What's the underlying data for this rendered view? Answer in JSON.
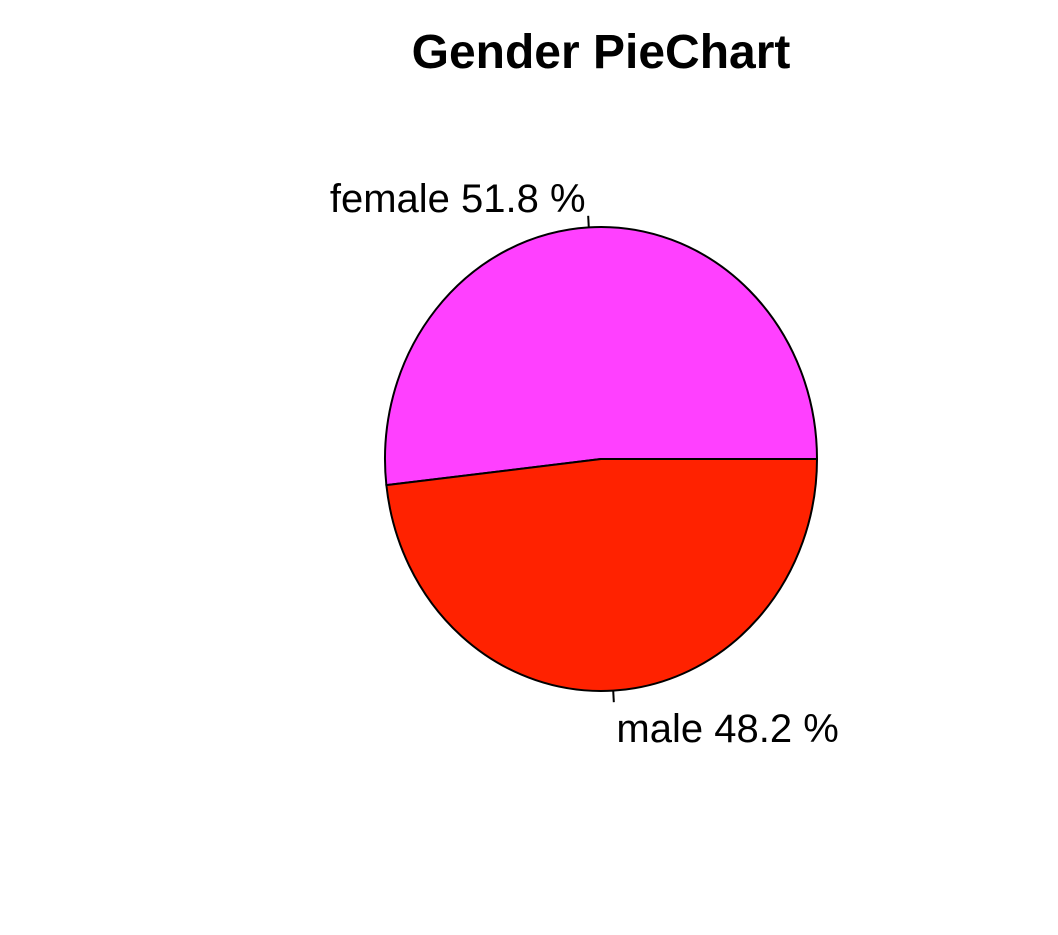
{
  "chart_data": {
    "type": "pie",
    "title": "Gender PieChart",
    "slices": [
      {
        "category": "female",
        "value": 51.8,
        "label": "female 51.8 %",
        "color": "#FF40FF"
      },
      {
        "category": "male",
        "value": 48.2,
        "label": "male 48.2 %",
        "color": "#FF2200"
      }
    ],
    "start_angle_deg": 0,
    "direction": "counterclockwise",
    "border_color": "#000000",
    "legend": "none"
  }
}
